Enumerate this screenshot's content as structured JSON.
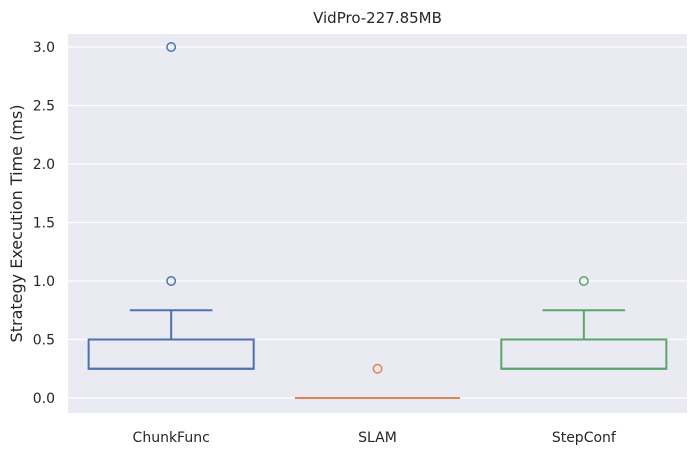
{
  "chart_data": {
    "type": "box",
    "title": "VidPro-227.85MB",
    "xlabel": "",
    "ylabel": "Strategy Execution Time (ms)",
    "ylim": [
      -0.14,
      3.15
    ],
    "yticks": [
      0.0,
      0.5,
      1.0,
      1.5,
      2.0,
      2.5,
      3.0
    ],
    "ytick_labels": [
      "0.0",
      "0.5",
      "1.0",
      "1.5",
      "2.0",
      "2.5",
      "3.0"
    ],
    "grid": true,
    "categories": [
      "ChunkFunc",
      "SLAM",
      "StepConf"
    ],
    "series": [
      {
        "category": "ChunkFunc",
        "color": "#4c72b0",
        "whisker_low": 0.25,
        "q1": 0.25,
        "median": 0.25,
        "q3": 0.5,
        "whisker_high": 0.75,
        "outliers": [
          1.0,
          3.0
        ]
      },
      {
        "category": "SLAM",
        "color": "#dd8452",
        "whisker_low": 0.0,
        "q1": 0.0,
        "median": 0.0,
        "q3": 0.0,
        "whisker_high": 0.0,
        "outliers": [
          0.25
        ]
      },
      {
        "category": "StepConf",
        "color": "#55a868",
        "whisker_low": 0.25,
        "q1": 0.25,
        "median": 0.25,
        "q3": 0.5,
        "whisker_high": 0.75,
        "outliers": [
          1.0
        ]
      }
    ]
  }
}
